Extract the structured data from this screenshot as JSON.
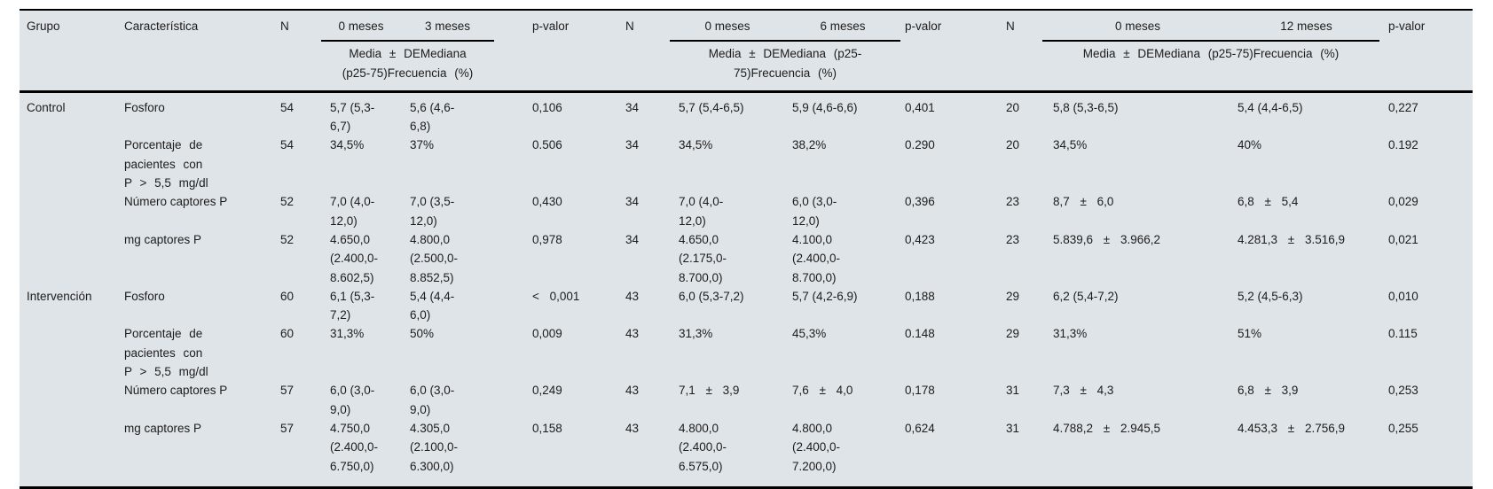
{
  "colors": {
    "table_background": "#dfe4e8",
    "rule_color": "#000000",
    "text_color": "#1c1c1c"
  },
  "header": {
    "grupo": "Grupo",
    "caracteristica": "Característica",
    "n": "N",
    "p_valor": "p-valor",
    "groups": [
      {
        "baseline": "0 meses",
        "followup": "3 meses",
        "measures_line1": "Media ± DEMediana",
        "measures_line2": "(p25-75)Frecuencia (%)"
      },
      {
        "baseline": "0 meses",
        "followup": "6 meses",
        "measures_line1": "Media ± DEMediana (p25-",
        "measures_line2": "75)Frecuencia (%)"
      },
      {
        "baseline": "0 meses",
        "followup": "12 meses",
        "measures_line1": "Media ± DEMediana (p25-75)Frecuencia (%)",
        "measures_line2": ""
      }
    ]
  },
  "body": {
    "rows": [
      {
        "grupo": "Control",
        "car": "Fosforo",
        "n1": "54",
        "a1": "5,7 (5,3-6,7)",
        "b1": "5,6 (4,6-6,8)",
        "p1": "0,106",
        "n2": "34",
        "a2": "5,7 (5,4-6,5)",
        "b2": "5,9 (4,6-6,6)",
        "p2": "0,401",
        "n3": "20",
        "a3": "5,8 (5,3-6,5)",
        "b3": "5,4 (4,4-6,5)",
        "p3": "0,227"
      },
      {
        "car": "Porcentaje de pacientes con P > 5,5 mg/dl",
        "n1": "54",
        "a1": "34,5%",
        "b1": "37%",
        "p1": "0.506",
        "n2": "34",
        "a2": "34,5%",
        "b2": "38,2%",
        "p2": "0.290",
        "n3": "20",
        "a3": "34,5%",
        "b3": "40%",
        "p3": "0.192"
      },
      {
        "car": "Número captores P",
        "n1": "52",
        "a1": "7,0 (4,0-12,0)",
        "b1": "7,0 (3,5-12,0)",
        "p1": "0,430",
        "n2": "34",
        "a2": "7,0 (4,0-12,0)",
        "b2": "6,0 (3,0-12,0)",
        "p2": "0,396",
        "n3": "23",
        "a3": "8,7 ± 6,0",
        "b3": "6,8 ± 5,4",
        "p3": "0,029"
      },
      {
        "car": "mg captores P",
        "n1": "52",
        "a1": "4.650,0 (2.400,0-8.602,5)",
        "b1": "4.800,0 (2.500,0-8.852,5)",
        "p1": "0,978",
        "n2": "34",
        "a2": "4.650,0 (2.175,0-8.700,0)",
        "b2": "4.100,0 (2.400,0-8.700,0)",
        "p2": "0,423",
        "n3": "23",
        "a3": "5.839,6 ± 3.966,2",
        "b3": "4.281,3 ± 3.516,9",
        "p3": "0,021"
      },
      {
        "grupo": "Intervención",
        "car": "Fosforo",
        "n1": "60",
        "a1": "6,1 (5,3-7,2)",
        "b1": "5,4 (4,4-6,0)",
        "p1": "< 0,001",
        "n2": "43",
        "a2": "6,0 (5,3-7,2)",
        "b2": "5,7 (4,2-6,9)",
        "p2": "0,188",
        "n3": "29",
        "a3": "6,2 (5,4-7,2)",
        "b3": "5,2 (4,5-6,3)",
        "p3": "0,010"
      },
      {
        "car": "Porcentaje de pacientes con P > 5,5 mg/dl",
        "n1": "60",
        "a1": "31,3%",
        "b1": "50%",
        "p1": "0,009",
        "n2": "43",
        "a2": "31,3%",
        "b2": "45,3%",
        "p2": "0.148",
        "n3": "29",
        "a3": "31,3%",
        "b3": "51%",
        "p3": "0.115"
      },
      {
        "car": "Número captores P",
        "n1": "57",
        "a1": "6,0 (3,0-9,0)",
        "b1": "6,0 (3,0-9,0)",
        "p1": "0,249",
        "n2": "43",
        "a2": "7,1 ± 3,9",
        "b2": "7,6 ± 4,0",
        "p2": "0,178",
        "n3": "31",
        "a3": "7,3 ± 4,3",
        "b3": "6,8 ± 3,9",
        "p3": "0,253"
      },
      {
        "car": "mg captores P",
        "n1": "57",
        "a1": "4.750,0 (2.400,0-6.750,0)",
        "b1": "4.305,0 (2.100,0-6.300,0)",
        "p1": "0,158",
        "n2": "43",
        "a2": "4.800,0 (2.400,0-6.575,0)",
        "b2": "4.800,0 (2.400,0-7.200,0)",
        "p2": "0,624",
        "n3": "31",
        "a3": "4.788,2 ± 2.945,5",
        "b3": "4.453,3 ± 2.756,9",
        "p3": "0,255"
      }
    ]
  }
}
